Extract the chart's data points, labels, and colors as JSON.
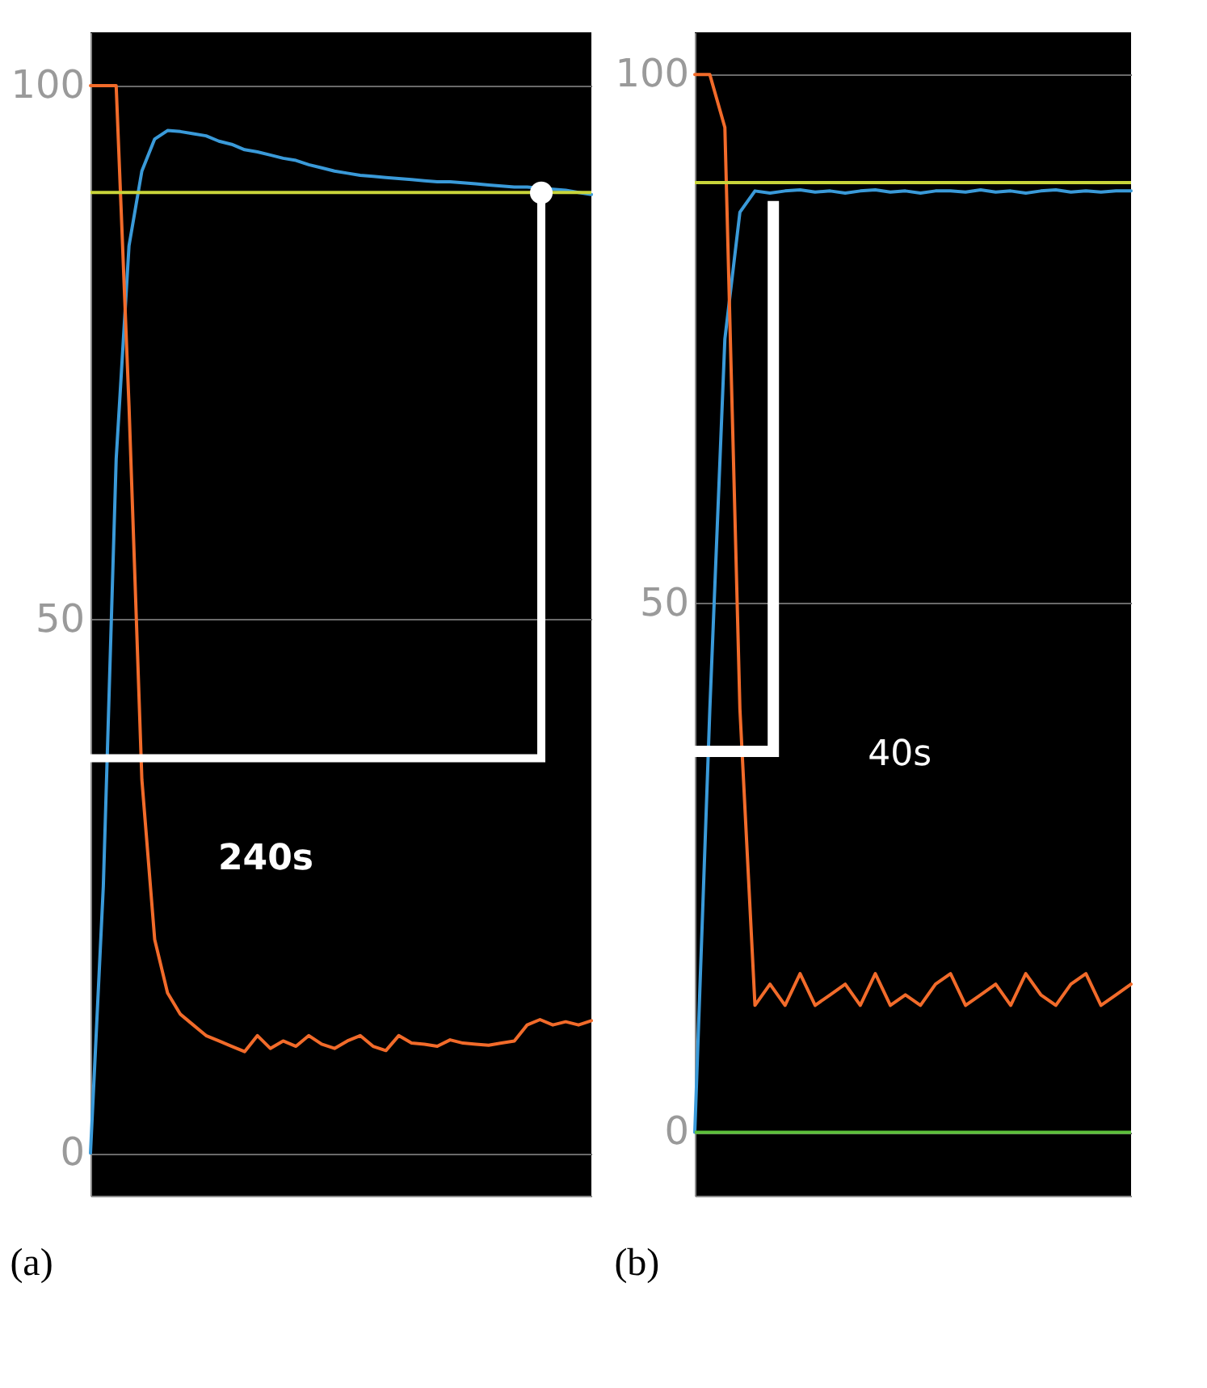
{
  "chart_data": [
    {
      "type": "line",
      "title": "(a)",
      "categories": [
        null,
        null,
        null,
        null,
        null,
        null,
        null,
        null,
        null,
        null,
        null,
        null,
        null,
        null,
        null,
        null,
        null,
        null,
        null,
        null,
        null,
        null,
        null,
        null,
        null,
        null,
        null,
        null,
        null,
        null,
        null,
        null,
        null,
        null,
        null,
        null,
        null,
        null,
        null,
        null
      ],
      "series": [
        {
          "color": "#3a9ad9",
          "values": [
            0,
            25,
            65,
            85,
            92,
            95,
            95.8,
            95.7,
            95.5,
            95.3,
            94.8,
            94.5,
            94,
            93.8,
            93.5,
            93.2,
            93,
            92.6,
            92.3,
            92,
            91.8,
            91.6,
            91.5,
            91.4,
            91.3,
            91.2,
            91.1,
            91,
            91,
            90.9,
            90.8,
            90.7,
            90.6,
            90.5,
            90.5,
            90.4,
            90.3,
            90.2,
            90,
            89.8
          ]
        },
        {
          "color": "#f26b2a",
          "values": [
            100,
            100,
            100,
            70,
            35,
            20,
            15,
            13,
            12,
            11,
            10.5,
            10,
            9.5,
            11,
            9.8,
            10.5,
            10,
            11,
            10.2,
            9.8,
            10.5,
            11,
            10,
            9.6,
            11,
            10.3,
            10.2,
            10,
            10.6,
            10.3,
            10.2,
            10.1,
            10.3,
            10.5,
            12,
            12.5,
            12,
            12.3,
            12,
            12.4
          ]
        }
      ],
      "ylim": [
        -4,
        105
      ],
      "yticks": [
        0,
        50,
        100
      ],
      "grid": "y",
      "tick_labels": "y",
      "ref_lines": [
        {
          "axis": "y",
          "value": 90,
          "color": "#c8d43a"
        }
      ],
      "annotations": [
        "240s"
      ]
    },
    {
      "type": "line",
      "title": "(b)",
      "categories": [
        null,
        null,
        null,
        null,
        null,
        null,
        null,
        null,
        null,
        null,
        null,
        null,
        null,
        null,
        null,
        null,
        null,
        null,
        null,
        null,
        null,
        null,
        null,
        null,
        null,
        null,
        null,
        null,
        null,
        null
      ],
      "series": [
        {
          "color": "#3a9ad9",
          "values": [
            0,
            40,
            75,
            87,
            89,
            88.8,
            89,
            89.1,
            88.9,
            89,
            88.8,
            89,
            89.1,
            88.9,
            89,
            88.8,
            89,
            89,
            88.9,
            89.1,
            88.9,
            89,
            88.8,
            89,
            89.1,
            88.9,
            89,
            88.9,
            89,
            89
          ]
        },
        {
          "color": "#f26b2a",
          "values": [
            100,
            100,
            95,
            40,
            12,
            14,
            12,
            15,
            12,
            13,
            14,
            12,
            15,
            12,
            13,
            12,
            14,
            15,
            12,
            13,
            14,
            12,
            15,
            13,
            12,
            14,
            15,
            12,
            13,
            14
          ]
        }
      ],
      "ylim": [
        -6,
        104
      ],
      "yticks": [
        0,
        50,
        100
      ],
      "grid": "y",
      "tick_labels": "y",
      "ref_lines": [
        {
          "axis": "y",
          "value": 0,
          "color": "#5cc03a"
        },
        {
          "axis": "y",
          "value": 89.8,
          "color": "#c8d43a"
        }
      ],
      "annotations": [
        "40s"
      ]
    }
  ]
}
